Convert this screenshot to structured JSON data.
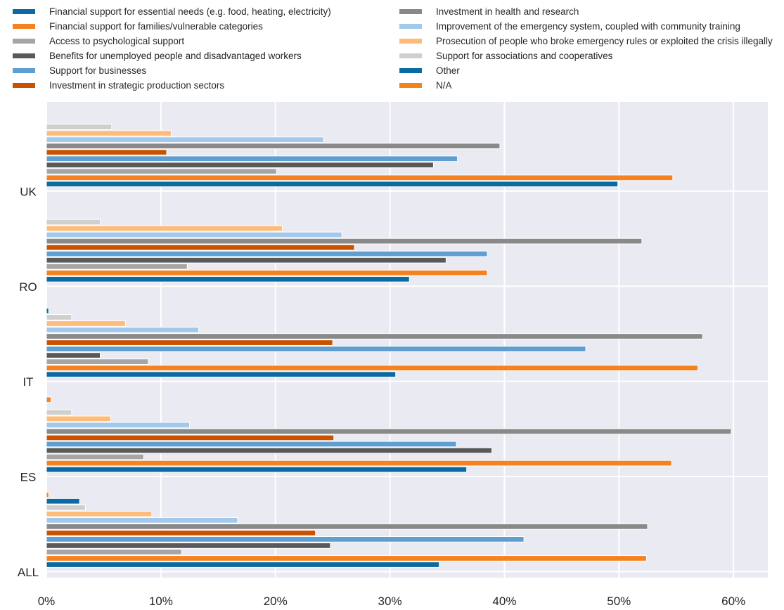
{
  "chart_data": {
    "type": "bar",
    "orientation": "horizontal",
    "categories": [
      "UK",
      "RO",
      "IT",
      "ES",
      "ALL"
    ],
    "xlim": [
      0,
      63
    ],
    "xticks": [
      0,
      10,
      20,
      30,
      40,
      50,
      60
    ],
    "xtick_labels": [
      "0%",
      "10%",
      "20%",
      "30%",
      "40%",
      "50%",
      "60%"
    ],
    "grid": true,
    "legend_placement": "top",
    "series": [
      {
        "name": "Financial support for essential needs (e.g. food, heating, electricity)",
        "color": "#0a6aa1",
        "values": [
          49.9,
          31.7,
          30.5,
          36.7,
          34.3
        ]
      },
      {
        "name": "Financial support for families/vulnerable categories",
        "color": "#f58220",
        "values": [
          54.7,
          38.5,
          56.9,
          54.6,
          52.4
        ]
      },
      {
        "name": "Access to psychological support",
        "color": "#a5a5a5",
        "values": [
          20.1,
          12.3,
          8.9,
          8.5,
          11.8
        ]
      },
      {
        "name": "Benefits for unemployed people and disadvantaged workers",
        "color": "#595959",
        "values": [
          33.8,
          34.9,
          4.7,
          38.9,
          24.8
        ]
      },
      {
        "name": "Support for businesses",
        "color": "#5f9ed1",
        "values": [
          35.9,
          38.5,
          47.1,
          35.8,
          41.7
        ]
      },
      {
        "name": "Investment in strategic production sectors",
        "color": "#c85200",
        "values": [
          10.5,
          26.9,
          25.0,
          25.1,
          23.5
        ]
      },
      {
        "name": "Investment in health and research",
        "color": "#898989",
        "values": [
          39.6,
          52.0,
          57.3,
          59.8,
          52.5
        ]
      },
      {
        "name": "Improvement of the emergency system, coupled with community training",
        "color": "#a2c8ec",
        "values": [
          24.2,
          25.8,
          13.3,
          12.5,
          16.7
        ]
      },
      {
        "name": "Prosecution of people who broke emergency rules or exploited the crisis illegally",
        "color": "#ffbc79",
        "values": [
          10.9,
          20.6,
          6.9,
          5.6,
          9.2
        ]
      },
      {
        "name": "Support for associations and cooperatives",
        "color": "#cfcfcf",
        "values": [
          5.7,
          4.7,
          2.2,
          2.2,
          3.4
        ]
      },
      {
        "name": "Other",
        "color": "#0a6aa1",
        "values": [
          0,
          0,
          0.2,
          0,
          2.9
        ]
      },
      {
        "name": "N/A",
        "color": "#f58220",
        "values": [
          0,
          0,
          0,
          0.4,
          0.2
        ]
      }
    ]
  }
}
